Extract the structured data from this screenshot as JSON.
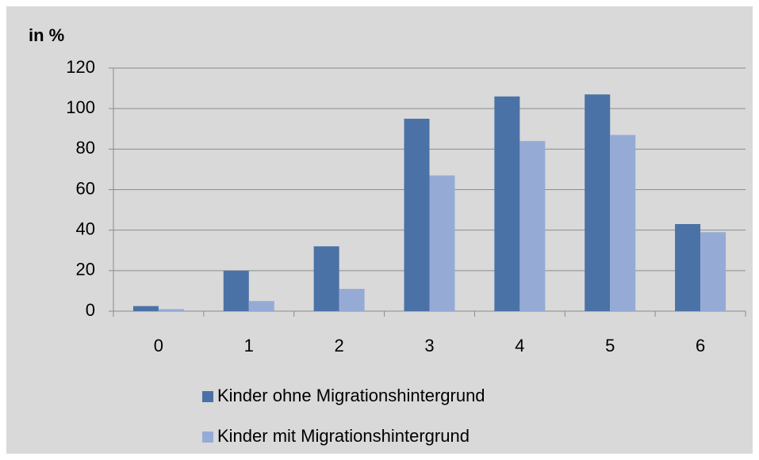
{
  "chart_data": {
    "type": "bar",
    "y_label": "in %",
    "categories": [
      "0",
      "1",
      "2",
      "3",
      "4",
      "5",
      "6"
    ],
    "series": [
      {
        "name": "Kinder ohne Migrationshintergrund",
        "color": "#4a72a6",
        "values": [
          2.5,
          20,
          32,
          95,
          106,
          107,
          43
        ]
      },
      {
        "name": "Kinder mit Migrationshintergrund",
        "color": "#95abd6",
        "values": [
          1,
          5,
          11,
          67,
          84,
          87,
          39
        ]
      }
    ],
    "ylim": [
      0,
      120
    ],
    "yticks": [
      0,
      20,
      40,
      60,
      80,
      100,
      120
    ],
    "grid": true,
    "legend": "bottom"
  }
}
